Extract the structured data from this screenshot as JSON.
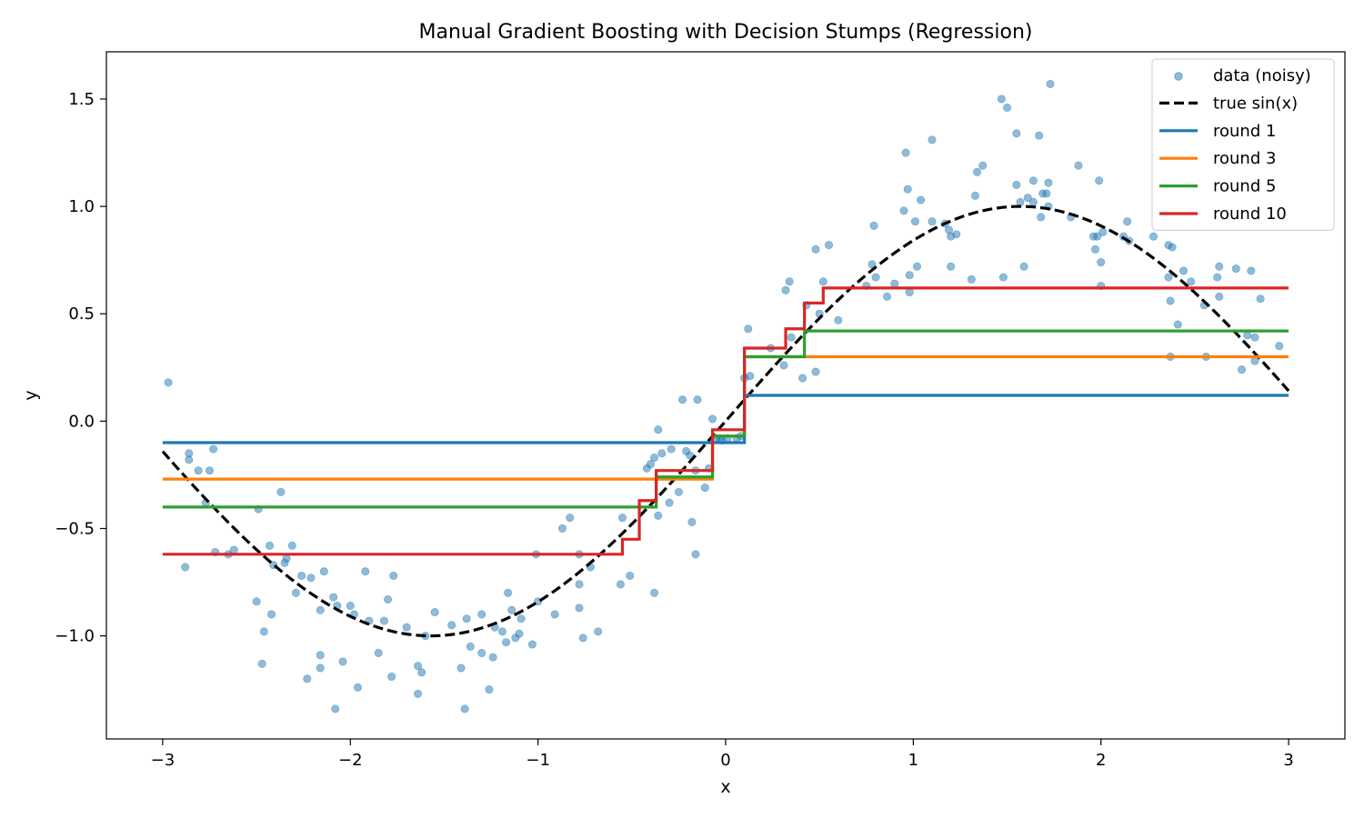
{
  "chart_data": {
    "type": "line",
    "title": "Manual Gradient Boosting with Decision Stumps (Regression)",
    "xlabel": "x",
    "ylabel": "y",
    "xlim": [
      -3.3,
      3.3
    ],
    "ylim": [
      -1.48,
      1.72
    ],
    "xticks": [
      {
        "value": -3,
        "label": "−3"
      },
      {
        "value": -2,
        "label": "−2"
      },
      {
        "value": -1,
        "label": "−1"
      },
      {
        "value": 0,
        "label": "0"
      },
      {
        "value": 1,
        "label": "1"
      },
      {
        "value": 2,
        "label": "2"
      },
      {
        "value": 3,
        "label": "3"
      }
    ],
    "yticks": [
      {
        "value": -1.0,
        "label": "−1.0"
      },
      {
        "value": -0.5,
        "label": "−0.5"
      },
      {
        "value": 0.0,
        "label": "0.0"
      },
      {
        "value": 0.5,
        "label": "0.5"
      },
      {
        "value": 1.0,
        "label": "1.0"
      },
      {
        "value": 1.5,
        "label": "1.5"
      }
    ],
    "grid": false,
    "legend_position": "top-right",
    "scatter": {
      "name": "data (noisy)",
      "color": "#1f77b4",
      "points": [
        [
          -2.97,
          0.18
        ],
        [
          -2.88,
          -0.68
        ],
        [
          -2.86,
          -0.15
        ],
        [
          -2.86,
          -0.18
        ],
        [
          -2.81,
          -0.23
        ],
        [
          -2.77,
          -0.38
        ],
        [
          -2.75,
          -0.23
        ],
        [
          -2.73,
          -0.13
        ],
        [
          -2.72,
          -0.61
        ],
        [
          -2.65,
          -0.62
        ],
        [
          -2.62,
          -0.6
        ],
        [
          -2.5,
          -0.84
        ],
        [
          -2.49,
          -0.41
        ],
        [
          -2.47,
          -1.13
        ],
        [
          -2.46,
          -0.98
        ],
        [
          -2.43,
          -0.58
        ],
        [
          -2.42,
          -0.9
        ],
        [
          -2.41,
          -0.67
        ],
        [
          -2.37,
          -0.33
        ],
        [
          -2.35,
          -0.66
        ],
        [
          -2.34,
          -0.64
        ],
        [
          -2.31,
          -0.58
        ],
        [
          -2.29,
          -0.8
        ],
        [
          -2.26,
          -0.72
        ],
        [
          -2.23,
          -1.2
        ],
        [
          -2.21,
          -0.73
        ],
        [
          -2.16,
          -1.09
        ],
        [
          -2.16,
          -1.15
        ],
        [
          -2.16,
          -0.88
        ],
        [
          -2.14,
          -0.7
        ],
        [
          -2.09,
          -0.82
        ],
        [
          -2.08,
          -1.34
        ],
        [
          -2.07,
          -0.86
        ],
        [
          -2.04,
          -1.12
        ],
        [
          -2.0,
          -0.86
        ],
        [
          -1.98,
          -0.9
        ],
        [
          -1.96,
          -1.24
        ],
        [
          -1.92,
          -0.7
        ],
        [
          -1.9,
          -0.93
        ],
        [
          -1.85,
          -1.08
        ],
        [
          -1.82,
          -0.93
        ],
        [
          -1.8,
          -0.83
        ],
        [
          -1.78,
          -1.19
        ],
        [
          -1.77,
          -0.72
        ],
        [
          -1.7,
          -0.96
        ],
        [
          -1.64,
          -1.14
        ],
        [
          -1.64,
          -1.27
        ],
        [
          -1.62,
          -1.17
        ],
        [
          -1.6,
          -1.0
        ],
        [
          -1.55,
          -0.89
        ],
        [
          -1.46,
          -0.95
        ],
        [
          -1.41,
          -1.15
        ],
        [
          -1.39,
          -1.34
        ],
        [
          -1.38,
          -0.92
        ],
        [
          -1.36,
          -1.05
        ],
        [
          -1.3,
          -1.08
        ],
        [
          -1.3,
          -0.9
        ],
        [
          -1.26,
          -1.25
        ],
        [
          -1.24,
          -1.1
        ],
        [
          -1.23,
          -0.96
        ],
        [
          -1.19,
          -0.98
        ],
        [
          -1.17,
          -1.03
        ],
        [
          -1.16,
          -0.8
        ],
        [
          -1.14,
          -0.88
        ],
        [
          -1.12,
          -1.01
        ],
        [
          -1.1,
          -0.99
        ],
        [
          -1.09,
          -0.92
        ],
        [
          -1.03,
          -1.04
        ],
        [
          -1.01,
          -0.62
        ],
        [
          -1.0,
          -0.84
        ],
        [
          -0.91,
          -0.9
        ],
        [
          -0.87,
          -0.5
        ],
        [
          -0.83,
          -0.45
        ],
        [
          -0.78,
          -0.62
        ],
        [
          -0.78,
          -0.76
        ],
        [
          -0.78,
          -0.87
        ],
        [
          -0.76,
          -1.01
        ],
        [
          -0.72,
          -0.68
        ],
        [
          -0.68,
          -0.98
        ],
        [
          -0.56,
          -0.76
        ],
        [
          -0.55,
          -0.45
        ],
        [
          -0.51,
          -0.72
        ],
        [
          -0.42,
          -0.22
        ],
        [
          -0.4,
          -0.2
        ],
        [
          -0.38,
          -0.8
        ],
        [
          -0.38,
          -0.17
        ],
        [
          -0.36,
          -0.04
        ],
        [
          -0.36,
          -0.44
        ],
        [
          -0.34,
          -0.15
        ],
        [
          -0.3,
          -0.38
        ],
        [
          -0.29,
          -0.13
        ],
        [
          -0.25,
          -0.33
        ],
        [
          -0.23,
          0.1
        ],
        [
          -0.21,
          -0.14
        ],
        [
          -0.19,
          -0.16
        ],
        [
          -0.18,
          -0.47
        ],
        [
          -0.16,
          -0.62
        ],
        [
          -0.16,
          -0.23
        ],
        [
          -0.15,
          0.1
        ],
        [
          -0.11,
          -0.31
        ],
        [
          -0.09,
          -0.22
        ],
        [
          -0.07,
          0.01
        ],
        [
          -0.05,
          -0.08
        ],
        [
          -0.03,
          -0.08
        ],
        [
          -0.02,
          -0.09
        ],
        [
          0.01,
          -0.08
        ],
        [
          0.06,
          -0.08
        ],
        [
          0.08,
          -0.07
        ],
        [
          0.1,
          0.2
        ],
        [
          0.12,
          0.43
        ],
        [
          0.13,
          0.21
        ],
        [
          0.24,
          0.34
        ],
        [
          0.31,
          0.26
        ],
        [
          0.32,
          0.61
        ],
        [
          0.34,
          0.65
        ],
        [
          0.35,
          0.39
        ],
        [
          0.41,
          0.2
        ],
        [
          0.43,
          0.54
        ],
        [
          0.48,
          0.8
        ],
        [
          0.48,
          0.23
        ],
        [
          0.5,
          0.5
        ],
        [
          0.52,
          0.65
        ],
        [
          0.55,
          0.82
        ],
        [
          0.6,
          0.47
        ],
        [
          0.75,
          0.63
        ],
        [
          0.78,
          0.73
        ],
        [
          0.79,
          0.91
        ],
        [
          0.8,
          0.67
        ],
        [
          0.86,
          0.58
        ],
        [
          0.9,
          0.64
        ],
        [
          0.95,
          0.98
        ],
        [
          0.96,
          1.25
        ],
        [
          0.97,
          1.08
        ],
        [
          0.98,
          0.68
        ],
        [
          0.98,
          0.6
        ],
        [
          1.01,
          0.93
        ],
        [
          1.02,
          0.72
        ],
        [
          1.04,
          1.03
        ],
        [
          1.1,
          1.31
        ],
        [
          1.1,
          0.93
        ],
        [
          1.17,
          0.92
        ],
        [
          1.19,
          0.89
        ],
        [
          1.2,
          0.86
        ],
        [
          1.2,
          0.72
        ],
        [
          1.23,
          0.87
        ],
        [
          1.31,
          0.66
        ],
        [
          1.33,
          1.05
        ],
        [
          1.34,
          1.16
        ],
        [
          1.37,
          1.19
        ],
        [
          1.47,
          1.5
        ],
        [
          1.48,
          0.67
        ],
        [
          1.5,
          1.46
        ],
        [
          1.55,
          1.1
        ],
        [
          1.55,
          1.34
        ],
        [
          1.57,
          1.02
        ],
        [
          1.59,
          0.72
        ],
        [
          1.61,
          1.04
        ],
        [
          1.64,
          1.12
        ],
        [
          1.64,
          1.02
        ],
        [
          1.67,
          1.33
        ],
        [
          1.68,
          0.95
        ],
        [
          1.69,
          1.06
        ],
        [
          1.71,
          1.06
        ],
        [
          1.72,
          1.11
        ],
        [
          1.73,
          1.57
        ],
        [
          1.72,
          1.0
        ],
        [
          1.84,
          0.95
        ],
        [
          1.88,
          1.19
        ],
        [
          1.96,
          0.86
        ],
        [
          1.97,
          0.8
        ],
        [
          1.98,
          0.86
        ],
        [
          1.99,
          1.12
        ],
        [
          2.0,
          0.74
        ],
        [
          2.0,
          0.63
        ],
        [
          2.01,
          0.88
        ],
        [
          2.12,
          0.86
        ],
        [
          2.14,
          0.93
        ],
        [
          2.15,
          0.84
        ],
        [
          2.28,
          0.86
        ],
        [
          2.36,
          0.67
        ],
        [
          2.36,
          0.82
        ],
        [
          2.37,
          0.3
        ],
        [
          2.37,
          0.56
        ],
        [
          2.38,
          0.81
        ],
        [
          2.41,
          0.45
        ],
        [
          2.44,
          0.7
        ],
        [
          2.48,
          0.65
        ],
        [
          2.55,
          0.54
        ],
        [
          2.56,
          0.3
        ],
        [
          2.62,
          0.67
        ],
        [
          2.63,
          0.72
        ],
        [
          2.63,
          0.58
        ],
        [
          2.72,
          0.71
        ],
        [
          2.75,
          0.24
        ],
        [
          2.78,
          0.4
        ],
        [
          2.8,
          0.7
        ],
        [
          2.82,
          0.39
        ],
        [
          2.82,
          0.28
        ],
        [
          2.85,
          0.57
        ],
        [
          2.95,
          0.35
        ]
      ]
    },
    "series": [
      {
        "name": "true sin(x)",
        "color": "#000000",
        "style": "dashed",
        "function": "sin(x)"
      },
      {
        "name": "round 1",
        "color": "#1f77b4",
        "style": "solid",
        "steps": [
          [
            -3,
            -0.1
          ],
          [
            0.1,
            -0.1
          ],
          [
            0.1,
            0.12
          ],
          [
            3,
            0.12
          ]
        ]
      },
      {
        "name": "round 3",
        "color": "#ff7f0e",
        "style": "solid",
        "steps": [
          [
            -3,
            -0.27
          ],
          [
            -0.07,
            -0.27
          ],
          [
            -0.07,
            -0.07
          ],
          [
            0.1,
            -0.07
          ],
          [
            0.1,
            0.3
          ],
          [
            3,
            0.3
          ]
        ]
      },
      {
        "name": "round 5",
        "color": "#2ca02c",
        "style": "solid",
        "steps": [
          [
            -3,
            -0.4
          ],
          [
            -0.37,
            -0.4
          ],
          [
            -0.37,
            -0.26
          ],
          [
            -0.07,
            -0.26
          ],
          [
            -0.07,
            -0.07
          ],
          [
            0.1,
            -0.07
          ],
          [
            0.1,
            0.3
          ],
          [
            0.42,
            0.3
          ],
          [
            0.42,
            0.42
          ],
          [
            3,
            0.42
          ]
        ]
      },
      {
        "name": "round 10",
        "color": "#d62728",
        "style": "solid",
        "steps": [
          [
            -3,
            -0.62
          ],
          [
            -0.55,
            -0.62
          ],
          [
            -0.55,
            -0.55
          ],
          [
            -0.46,
            -0.55
          ],
          [
            -0.46,
            -0.37
          ],
          [
            -0.37,
            -0.37
          ],
          [
            -0.37,
            -0.23
          ],
          [
            -0.07,
            -0.23
          ],
          [
            -0.07,
            -0.04
          ],
          [
            0.1,
            -0.04
          ],
          [
            0.1,
            0.34
          ],
          [
            0.32,
            0.34
          ],
          [
            0.32,
            0.43
          ],
          [
            0.42,
            0.43
          ],
          [
            0.42,
            0.55
          ],
          [
            0.52,
            0.55
          ],
          [
            0.52,
            0.62
          ],
          [
            3,
            0.62
          ]
        ]
      }
    ]
  }
}
